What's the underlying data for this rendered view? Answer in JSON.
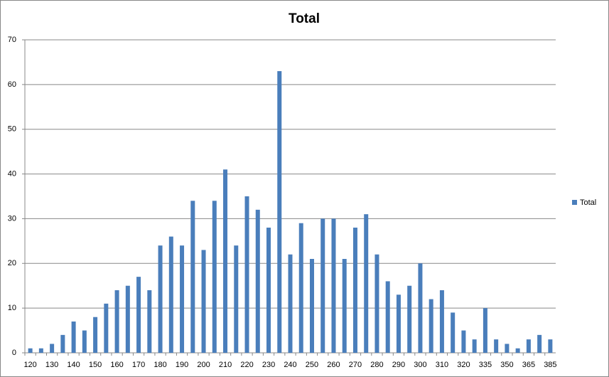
{
  "chart_data": {
    "type": "bar",
    "title": "Total",
    "categories": [
      "120",
      null,
      "130",
      null,
      "140",
      null,
      "150",
      null,
      "160",
      null,
      "170",
      null,
      "180",
      null,
      "190",
      null,
      "200",
      null,
      "210",
      null,
      "220",
      null,
      "230",
      null,
      "240",
      null,
      "250",
      null,
      "260",
      null,
      "270",
      null,
      "280",
      null,
      "290",
      null,
      "300",
      null,
      "310",
      null,
      "320",
      null,
      "335",
      null,
      "350",
      null,
      "365",
      null,
      "385"
    ],
    "series": [
      {
        "name": "Total",
        "color": "#4a7ebb",
        "values": [
          1,
          1,
          2,
          4,
          7,
          5,
          8,
          11,
          14,
          15,
          17,
          14,
          24,
          26,
          24,
          34,
          23,
          34,
          41,
          24,
          35,
          32,
          28,
          63,
          22,
          29,
          21,
          30,
          30,
          21,
          28,
          31,
          22,
          16,
          13,
          15,
          20,
          12,
          14,
          9,
          5,
          3,
          10,
          3,
          2,
          1,
          3,
          4,
          3
        ]
      }
    ],
    "ylim": [
      0,
      70
    ],
    "yticks": [
      0,
      10,
      20,
      30,
      40,
      50,
      60,
      70
    ],
    "grid": true,
    "legend": "right"
  }
}
